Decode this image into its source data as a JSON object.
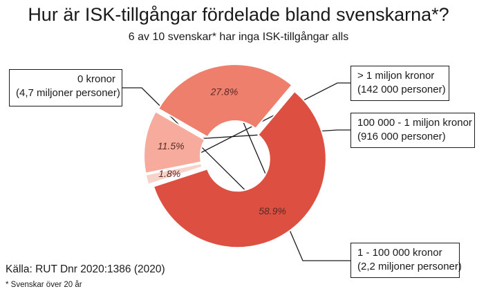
{
  "header": {
    "title": "Hur är ISK-tillgångar fördelade bland svenskarna*?",
    "subtitle": "6 av 10 svenskar* har inga ISK-tillgångar alls"
  },
  "chart_data": {
    "type": "pie",
    "donut": true,
    "slices": [
      {
        "label": "0 kronor",
        "detail": "(4,7 miljoner personer)",
        "value": 58.9,
        "value_label": "58.9%",
        "color": "#dd4f40"
      },
      {
        "label": "> 1 miljon kronor",
        "detail": "(142 000 personer)",
        "value": 1.8,
        "value_label": "1.8%",
        "color": "#f8d2c8"
      },
      {
        "label": "100 000 - 1 miljon kronor",
        "detail": "(916 000 personer)",
        "value": 11.5,
        "value_label": "11.5%",
        "color": "#f6ab9c"
      },
      {
        "label": "1 - 100 000 kronor",
        "detail": "(2,2 miljoner personer)",
        "value": 27.8,
        "value_label": "27.8%",
        "color": "#ee7f6c"
      }
    ]
  },
  "footer": {
    "source": "Källa: RUT Dnr 2020:1386 (2020)",
    "footnote": "* Svenskar över 20 år"
  }
}
